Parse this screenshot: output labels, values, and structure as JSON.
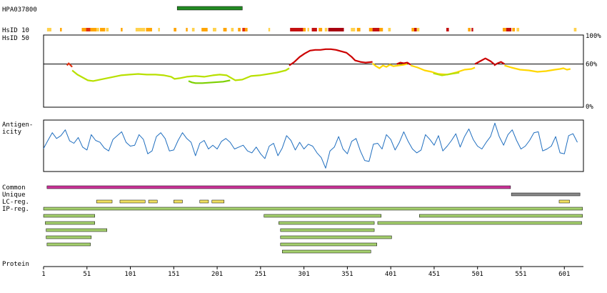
{
  "chart_data": {
    "type": "line",
    "antibody_id": "HPA037800",
    "protein_length": 623,
    "labels": {
      "hsid10": "HsID 10",
      "hsid50": "HsID 50",
      "antigenicity_line1": "Antigen-",
      "antigenicity_line2": "icity",
      "common": "Common",
      "unique": "Unique",
      "lc_reg": "LC-reg.",
      "ip_reg": "IP-reg.",
      "protein": "Protein"
    },
    "identity_axis": {
      "ticks": [
        "100%",
        "60%",
        "0%"
      ],
      "values": [
        100,
        60,
        0
      ],
      "threshold": 60
    },
    "x_axis": {
      "ticks": [
        1,
        51,
        101,
        151,
        201,
        251,
        301,
        351,
        401,
        451,
        501,
        551,
        601
      ],
      "range": [
        1,
        623
      ]
    },
    "antigen_region": {
      "start": 155,
      "end": 230,
      "color": "#228b22"
    },
    "hsid10_blocks": [
      [
        5,
        10,
        "#ffd24d"
      ],
      [
        20,
        22,
        "#ffa500"
      ],
      [
        45,
        50,
        "#ffa500"
      ],
      [
        50,
        55,
        "#e03010"
      ],
      [
        55,
        62,
        "#ffa500"
      ],
      [
        62,
        65,
        "#ffd24d"
      ],
      [
        66,
        72,
        "#ffa500"
      ],
      [
        73,
        76,
        "#ffd24d"
      ],
      [
        90,
        92,
        "#ffa500"
      ],
      [
        107,
        118,
        "#ffd24d"
      ],
      [
        119,
        126,
        "#ffa500"
      ],
      [
        133,
        135,
        "#ffd24d"
      ],
      [
        151,
        154,
        "#ffa500"
      ],
      [
        165,
        167,
        "#ffa500"
      ],
      [
        172,
        175,
        "#ffd24d"
      ],
      [
        183,
        190,
        "#ffa500"
      ],
      [
        196,
        200,
        "#ffd24d"
      ],
      [
        208,
        212,
        "#ffa500"
      ],
      [
        217,
        220,
        "#ffd24d"
      ],
      [
        225,
        228,
        "#ffa500"
      ],
      [
        230,
        233,
        "#e03010"
      ],
      [
        233,
        236,
        "#ffa500"
      ],
      [
        260,
        262,
        "#ffd24d"
      ],
      [
        285,
        300,
        "#c41010"
      ],
      [
        300,
        303,
        "#ffa500"
      ],
      [
        305,
        307,
        "#ffd24d"
      ],
      [
        310,
        316,
        "#c41010"
      ],
      [
        318,
        322,
        "#ffa500"
      ],
      [
        325,
        328,
        "#ffd24d"
      ],
      [
        329,
        347,
        "#a80010"
      ],
      [
        355,
        360,
        "#ffd24d"
      ],
      [
        362,
        366,
        "#ffa500"
      ],
      [
        376,
        380,
        "#ffa500"
      ],
      [
        380,
        388,
        "#c41010"
      ],
      [
        388,
        392,
        "#ffa500"
      ],
      [
        398,
        401,
        "#ffd24d"
      ],
      [
        425,
        428,
        "#ffa500"
      ],
      [
        428,
        431,
        "#c41010"
      ],
      [
        431,
        434,
        "#ffd24d"
      ],
      [
        465,
        468,
        "#c41010"
      ],
      [
        490,
        493,
        "#ffa500"
      ],
      [
        494,
        496,
        "#c41010"
      ],
      [
        530,
        534,
        "#ffa500"
      ],
      [
        534,
        540,
        "#c41010"
      ],
      [
        541,
        544,
        "#ffa500"
      ],
      [
        546,
        549,
        "#ffd24d"
      ],
      [
        612,
        615,
        "#ffd24d"
      ]
    ],
    "hsid50_segments": [
      {
        "x": [
          28,
          30,
          34
        ],
        "y": [
          58,
          61,
          56
        ],
        "color": "#e03010"
      },
      {
        "x": [
          34,
          40,
          46,
          52,
          58,
          66,
          74,
          82,
          90,
          100,
          110,
          120,
          130,
          140,
          148,
          152,
          158,
          166,
          176,
          186,
          196,
          204,
          212,
          222,
          230,
          240,
          250,
          260,
          270,
          280,
          284
        ],
        "y": [
          51,
          45,
          41,
          37,
          36,
          38,
          40,
          42,
          44,
          45,
          46,
          45,
          45,
          44,
          42,
          39,
          40,
          42,
          43,
          42,
          44,
          45,
          44,
          37,
          38,
          43,
          44,
          46,
          48,
          51,
          54
        ],
        "color": "#b8e000"
      },
      {
        "x": [
          168,
          172,
          176,
          184,
          196,
          208,
          216
        ],
        "y": [
          36,
          34,
          33,
          33,
          34,
          35,
          37
        ],
        "color": "#7cd000"
      },
      {
        "x": [
          284,
          290,
          296,
          302,
          308,
          314,
          320,
          326,
          332,
          338,
          344,
          350,
          356,
          360,
          366,
          372,
          380
        ],
        "y": [
          58,
          63,
          70,
          75,
          79,
          80,
          80,
          81,
          81,
          80,
          78,
          76,
          70,
          65,
          63,
          62,
          63
        ],
        "color": "#cc0000"
      },
      {
        "x": [
          380,
          384,
          388,
          392,
          396,
          400,
          404,
          410,
          416,
          420
        ],
        "y": [
          61,
          57,
          54,
          58,
          56,
          59,
          57,
          58,
          59,
          60
        ],
        "color": "#ffd700"
      },
      {
        "x": [
          408,
          412,
          416,
          420,
          424
        ],
        "y": [
          60,
          62,
          61,
          62,
          59
        ],
        "color": "#cc0000"
      },
      {
        "x": [
          424,
          432,
          440,
          448,
          456,
          466,
          476,
          486,
          494,
          498
        ],
        "y": [
          58,
          55,
          51,
          49,
          46,
          45,
          48,
          52,
          53,
          55
        ],
        "color": "#ffd700"
      },
      {
        "x": [
          450,
          460,
          470,
          480
        ],
        "y": [
          47,
          44,
          46,
          48
        ],
        "color": "#b8e000"
      },
      {
        "x": [
          498,
          504,
          510,
          516,
          520
        ],
        "y": [
          60,
          64,
          68,
          64,
          60
        ],
        "color": "#cc0000"
      },
      {
        "x": [
          520,
          524,
          528,
          532
        ],
        "y": [
          58,
          61,
          63,
          60
        ],
        "color": "#cc0000"
      },
      {
        "x": [
          532,
          540,
          550,
          560,
          570,
          580,
          590,
          596,
          600,
          604,
          608
        ],
        "y": [
          58,
          55,
          52,
          51,
          49,
          50,
          52,
          53,
          54,
          52,
          53
        ],
        "color": "#ffd700"
      }
    ],
    "antigenicity": {
      "range": [
        0,
        100
      ],
      "x": [
        1,
        6,
        11,
        16,
        21,
        26,
        31,
        36,
        41,
        46,
        51,
        56,
        61,
        66,
        71,
        76,
        81,
        86,
        91,
        96,
        101,
        106,
        111,
        116,
        121,
        126,
        131,
        136,
        141,
        146,
        151,
        156,
        161,
        166,
        171,
        176,
        181,
        186,
        191,
        196,
        201,
        206,
        211,
        216,
        221,
        226,
        231,
        236,
        241,
        246,
        251,
        256,
        261,
        266,
        271,
        276,
        281,
        286,
        291,
        296,
        301,
        306,
        311,
        316,
        321,
        326,
        331,
        336,
        341,
        346,
        351,
        356,
        361,
        366,
        371,
        376,
        381,
        386,
        391,
        396,
        401,
        406,
        411,
        416,
        421,
        426,
        431,
        436,
        441,
        446,
        451,
        456,
        461,
        466,
        471,
        476,
        481,
        486,
        491,
        496,
        501,
        506,
        511,
        516,
        521,
        526,
        531,
        536,
        541,
        546,
        551,
        556,
        561,
        566,
        571,
        576,
        581,
        586,
        591,
        596,
        601,
        606,
        611,
        616
      ],
      "y": [
        45,
        62,
        78,
        66,
        72,
        84,
        61,
        56,
        68,
        48,
        42,
        74,
        62,
        58,
        46,
        40,
        64,
        72,
        80,
        58,
        50,
        52,
        74,
        64,
        34,
        40,
        70,
        78,
        66,
        40,
        42,
        62,
        78,
        66,
        58,
        30,
        56,
        62,
        44,
        52,
        44,
        60,
        66,
        58,
        44,
        48,
        52,
        40,
        36,
        48,
        34,
        24,
        50,
        56,
        30,
        46,
        72,
        62,
        42,
        58,
        44,
        54,
        50,
        36,
        26,
        4,
        40,
        48,
        70,
        44,
        34,
        60,
        66,
        40,
        20,
        18,
        54,
        56,
        44,
        74,
        64,
        42,
        58,
        80,
        60,
        44,
        36,
        42,
        74,
        64,
        52,
        72,
        40,
        50,
        62,
        76,
        48,
        70,
        86,
        64,
        50,
        44,
        58,
        70,
        98,
        70,
        52,
        74,
        84,
        62,
        44,
        50,
        62,
        78,
        80,
        40,
        44,
        50,
        70,
        36,
        34,
        72,
        76,
        58
      ],
      "color": "#1f6ebf"
    },
    "common": {
      "start": 5,
      "end": 539,
      "color": "#cc3399"
    },
    "unique": {
      "start": 540,
      "end": 619,
      "color": "#888888"
    },
    "lc_regions": [
      [
        62,
        80
      ],
      [
        89,
        118
      ],
      [
        122,
        132
      ],
      [
        151,
        161
      ],
      [
        181,
        191
      ],
      [
        195,
        209
      ],
      [
        595,
        607
      ]
    ],
    "lc_color": "#f0e060",
    "ip_regions": [
      [
        1,
        622
      ],
      [
        1,
        60
      ],
      [
        255,
        390
      ],
      [
        434,
        622
      ],
      [
        3,
        60
      ],
      [
        272,
        382
      ],
      [
        386,
        621
      ],
      [
        4,
        74
      ],
      [
        274,
        382
      ],
      [
        4,
        56
      ],
      [
        274,
        402
      ],
      [
        5,
        55
      ],
      [
        274,
        385
      ],
      [
        276,
        378
      ]
    ],
    "ip_color": "#a5d06e"
  }
}
